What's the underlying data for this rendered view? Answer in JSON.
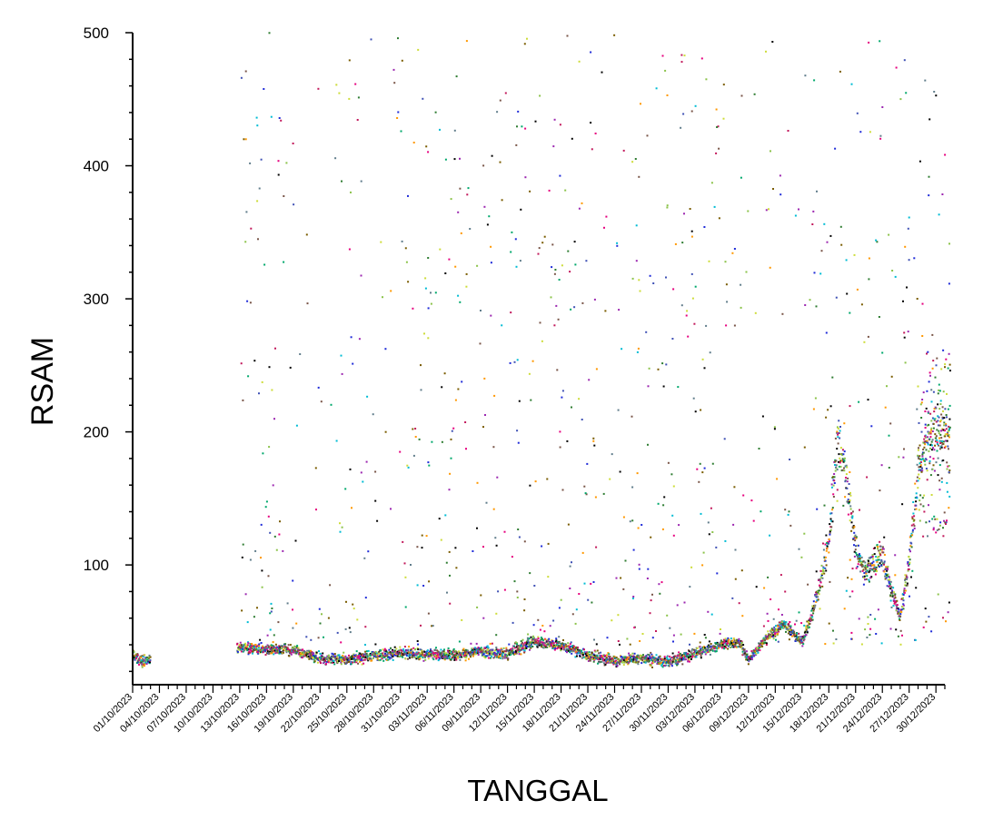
{
  "chart_data": {
    "type": "scatter",
    "title": "",
    "xlabel": "TANGGAL",
    "ylabel": "RSAM",
    "x_axis_kind": "date",
    "xlim": [
      "2023-10-01",
      "2023-12-31"
    ],
    "ylim": [
      10,
      500
    ],
    "yticks": [
      100,
      200,
      300,
      400,
      500
    ],
    "xtick_labels": [
      "01/10/2023",
      "04/10/2023",
      "07/10/2023",
      "10/10/2023",
      "13/10/2023",
      "16/10/2023",
      "19/10/2023",
      "22/10/2023",
      "25/10/2023",
      "28/10/2023",
      "31/10/2023",
      "03/11/2023",
      "06/11/2023",
      "09/11/2023",
      "12/11/2023",
      "15/11/2023",
      "18/11/2023",
      "21/11/2023",
      "24/11/2023",
      "27/11/2023",
      "30/11/2023",
      "03/12/2023",
      "06/12/2023",
      "09/12/2023",
      "12/12/2023",
      "15/12/2023",
      "18/12/2023",
      "21/12/2023",
      "24/12/2023",
      "27/12/2023",
      "30/12/2023"
    ],
    "grid": false,
    "legend": "none",
    "marker_colors": [
      "#000000",
      "#e6007e",
      "#1f2bd8",
      "#2f7d32",
      "#9c27b0",
      "#00bcd4",
      "#7a5c00",
      "#8bc34a",
      "#c2185b",
      "#3f51b5",
      "#ff9800",
      "#cddc39",
      "#795548",
      "#607d8b",
      "#00a86b"
    ],
    "baseline": [
      {
        "date": "2023-10-01",
        "rsam": 32
      },
      {
        "date": "2023-10-02",
        "rsam": 28
      },
      {
        "date": "2023-10-13",
        "rsam": 38
      },
      {
        "date": "2023-10-16",
        "rsam": 36
      },
      {
        "date": "2023-10-19",
        "rsam": 36
      },
      {
        "date": "2023-10-22",
        "rsam": 30
      },
      {
        "date": "2023-10-25",
        "rsam": 29
      },
      {
        "date": "2023-10-28",
        "rsam": 32
      },
      {
        "date": "2023-10-31",
        "rsam": 34
      },
      {
        "date": "2023-11-03",
        "rsam": 33
      },
      {
        "date": "2023-11-06",
        "rsam": 32
      },
      {
        "date": "2023-11-09",
        "rsam": 35
      },
      {
        "date": "2023-11-12",
        "rsam": 33
      },
      {
        "date": "2023-11-15",
        "rsam": 42
      },
      {
        "date": "2023-11-18",
        "rsam": 40
      },
      {
        "date": "2023-11-21",
        "rsam": 32
      },
      {
        "date": "2023-11-24",
        "rsam": 28
      },
      {
        "date": "2023-11-27",
        "rsam": 30
      },
      {
        "date": "2023-11-30",
        "rsam": 27
      },
      {
        "date": "2023-12-03",
        "rsam": 33
      },
      {
        "date": "2023-12-06",
        "rsam": 40
      },
      {
        "date": "2023-12-08",
        "rsam": 42
      },
      {
        "date": "2023-12-09",
        "rsam": 28
      },
      {
        "date": "2023-12-11",
        "rsam": 45
      },
      {
        "date": "2023-12-13",
        "rsam": 55
      },
      {
        "date": "2023-12-15",
        "rsam": 42
      },
      {
        "date": "2023-12-16",
        "rsam": 60
      },
      {
        "date": "2023-12-17",
        "rsam": 85
      },
      {
        "date": "2023-12-18",
        "rsam": 120
      },
      {
        "date": "2023-12-19",
        "rsam": 195
      },
      {
        "date": "2023-12-20",
        "rsam": 165
      },
      {
        "date": "2023-12-21",
        "rsam": 110
      },
      {
        "date": "2023-12-22",
        "rsam": 95
      },
      {
        "date": "2023-12-23",
        "rsam": 100
      },
      {
        "date": "2023-12-24",
        "rsam": 110
      },
      {
        "date": "2023-12-25",
        "rsam": 80
      },
      {
        "date": "2023-12-26",
        "rsam": 60
      },
      {
        "date": "2023-12-27",
        "rsam": 105
      },
      {
        "date": "2023-12-28",
        "rsam": 170
      },
      {
        "date": "2023-12-29",
        "rsam": 190
      },
      {
        "date": "2023-12-30",
        "rsam": 200
      },
      {
        "date": "2023-12-31",
        "rsam": 200
      }
    ],
    "gap": [
      "2023-10-03",
      "2023-10-12"
    ]
  }
}
